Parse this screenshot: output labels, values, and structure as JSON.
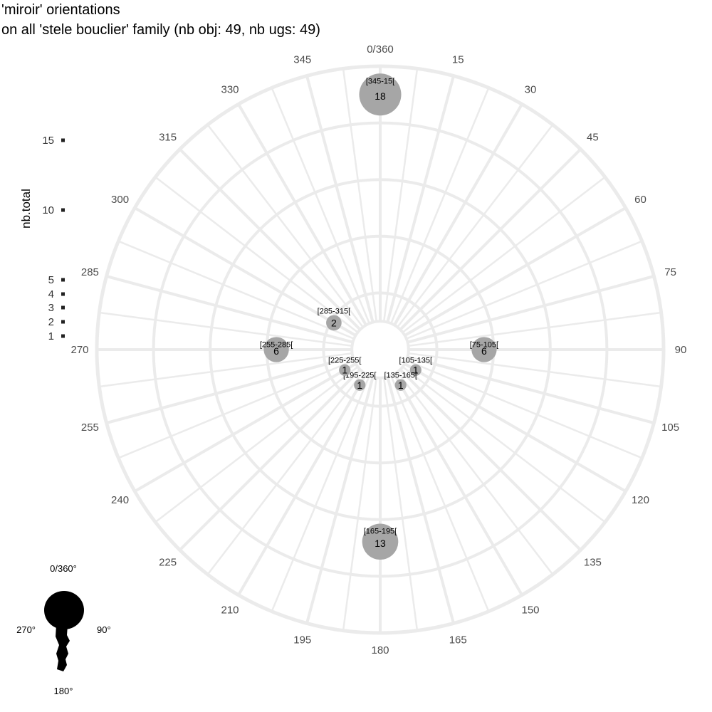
{
  "title_line1": "'miroir' orientations",
  "title_line2": "on all 'stele bouclier' family (nb obj: 49, nb ugs: 49)",
  "chart_data": {
    "type": "scatter",
    "projection": "polar",
    "angle_labels": [
      "0/360",
      "15",
      "30",
      "45",
      "60",
      "75",
      "90",
      "105",
      "120",
      "135",
      "150",
      "165",
      "180",
      "195",
      "210",
      "225",
      "240",
      "255",
      "270",
      "285",
      "300",
      "315",
      "330",
      "345"
    ],
    "radius_scale_max": 18,
    "ylabel": "nb.total",
    "legend": {
      "title": "nb.total",
      "values": [
        15,
        10,
        5,
        4,
        3,
        2,
        1
      ],
      "placement": "left"
    },
    "points": [
      {
        "label": "[345-15[",
        "angle": 0,
        "count": 18,
        "count_text": "18"
      },
      {
        "label": "[75-105[",
        "angle": 90,
        "count": 6,
        "count_text": "6"
      },
      {
        "label": "[165-195[",
        "angle": 180,
        "count": 13,
        "count_text": "13"
      },
      {
        "label": "[255-285[",
        "angle": 270,
        "count": 6,
        "count_text": "6"
      },
      {
        "label": "[285-315[",
        "angle": 300,
        "count": 2,
        "count_text": "2"
      },
      {
        "label": "[105-135[",
        "angle": 120,
        "count": 1,
        "count_text": "1"
      },
      {
        "label": "[135-165[",
        "angle": 150,
        "count": 1,
        "count_text": "1"
      },
      {
        "label": "[195-225[",
        "angle": 210,
        "count": 1,
        "count_text": "1"
      },
      {
        "label": "[225-255[",
        "angle": 240,
        "count": 1,
        "count_text": "1"
      }
    ]
  },
  "inset": {
    "top": "0/360°",
    "right": "90°",
    "bottom": "180°",
    "left": "270°"
  },
  "colors": {
    "point": "#a6a6a6",
    "grid": "#ebebeb",
    "silhouette": "#000000"
  }
}
